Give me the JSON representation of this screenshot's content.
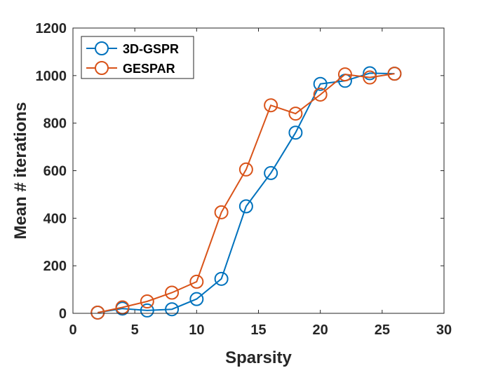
{
  "chart_data": {
    "type": "line",
    "title": "",
    "xlabel": "Sparsity",
    "ylabel": "Mean # iterations",
    "xlim": [
      0,
      30
    ],
    "ylim": [
      0,
      1200
    ],
    "xticks": [
      0,
      5,
      10,
      15,
      20,
      25,
      30
    ],
    "yticks": [
      0,
      200,
      400,
      600,
      800,
      1000,
      1200
    ],
    "grid": false,
    "legend_position": "top-left",
    "marker": "open-circle",
    "series": [
      {
        "name": "3D-GSPR",
        "color": "#0072BD",
        "x": [
          2,
          4,
          6,
          8,
          10,
          12,
          14,
          16,
          18,
          20,
          22,
          24,
          26
        ],
        "values": [
          3,
          20,
          12,
          17,
          60,
          145,
          450,
          590,
          760,
          965,
          978,
          1010,
          1008
        ]
      },
      {
        "name": "GESPAR",
        "color": "#D95319",
        "x": [
          2,
          4,
          6,
          8,
          10,
          12,
          14,
          16,
          18,
          20,
          22,
          24,
          26
        ],
        "values": [
          3,
          25,
          50,
          87,
          133,
          425,
          605,
          875,
          840,
          920,
          1005,
          992,
          1008
        ]
      }
    ]
  }
}
